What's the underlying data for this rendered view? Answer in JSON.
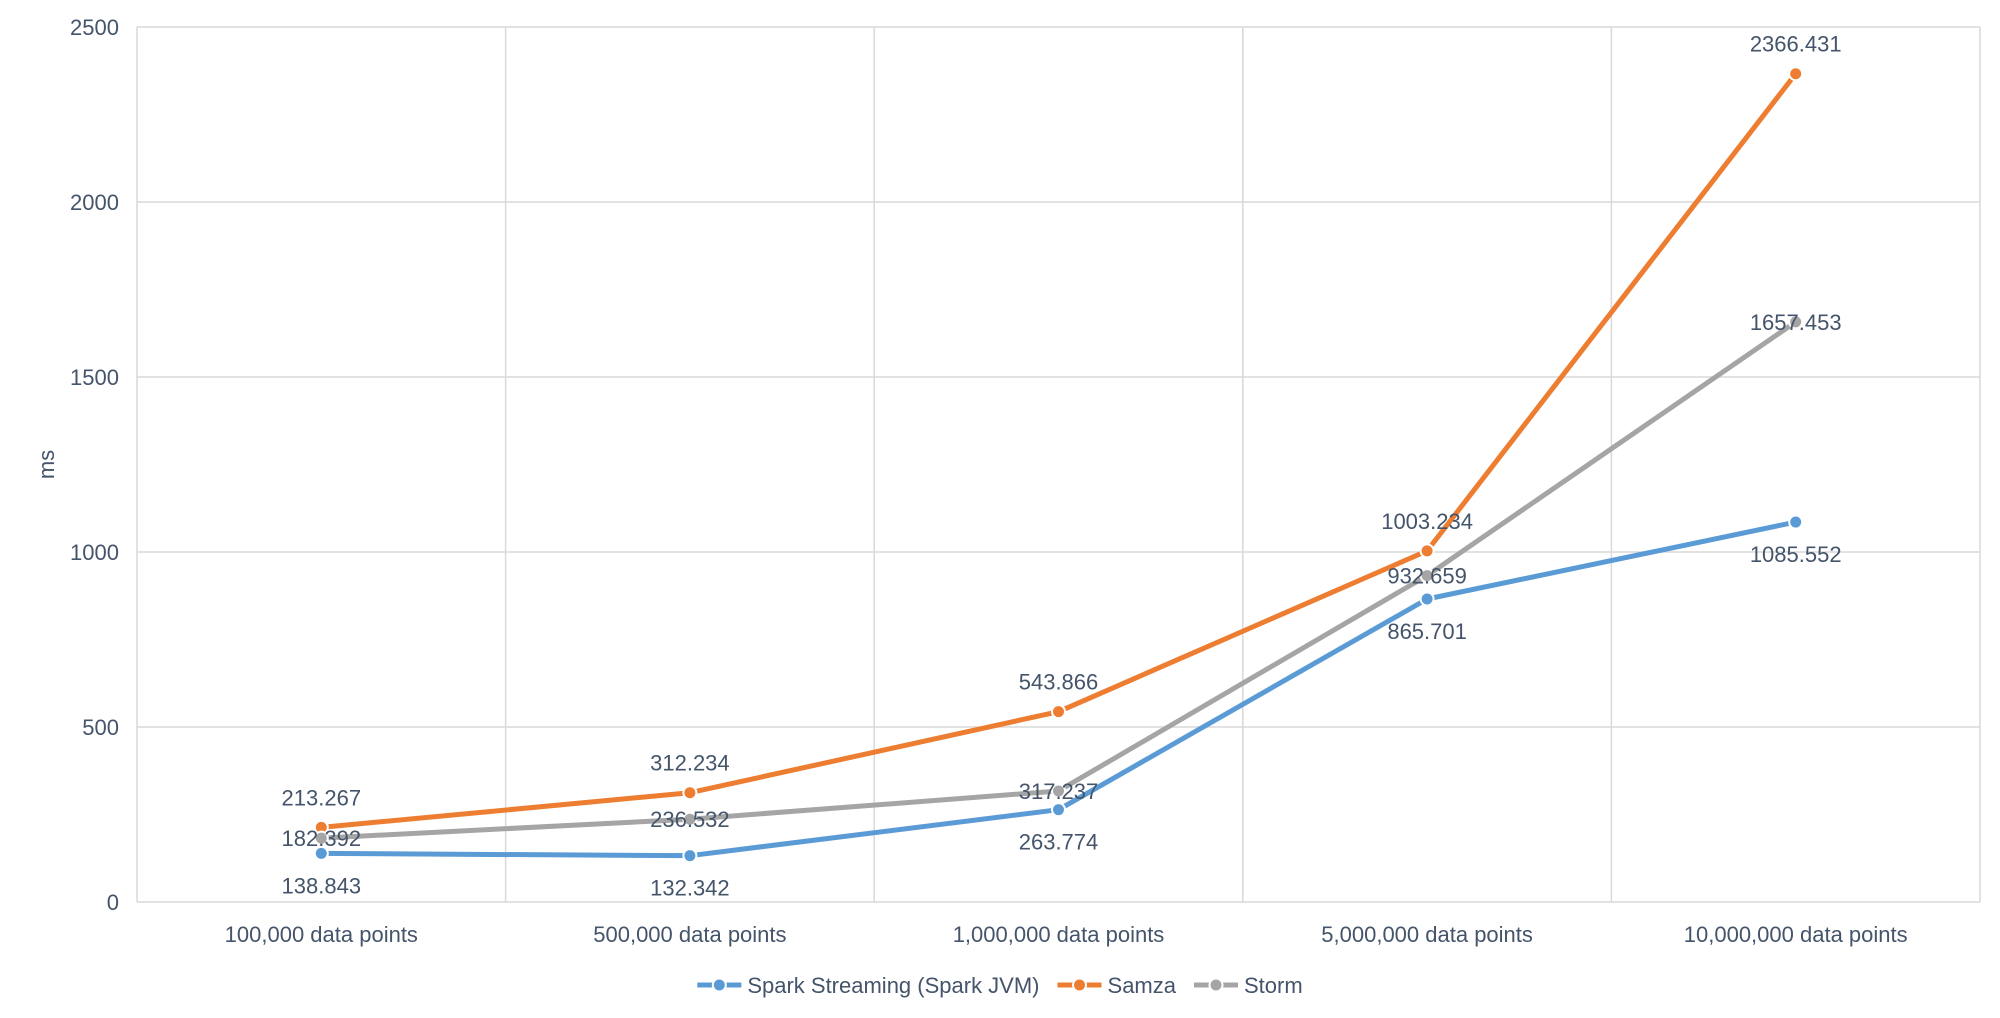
{
  "chart_data": {
    "type": "line",
    "title": "",
    "xlabel": "",
    "ylabel": "ms",
    "ylim": [
      0,
      2500
    ],
    "yticks": [
      0,
      500,
      1000,
      1500,
      2000,
      2500
    ],
    "grid": true,
    "legend_position": "bottom",
    "categories": [
      "100,000 data points",
      "500,000 data points",
      "1,000,000 data points",
      "5,000,000 data points",
      "10,000,000 data points"
    ],
    "series": [
      {
        "name": "Spark Streaming (Spark JVM)",
        "color": "#5b9bd5",
        "values": [
          138.843,
          132.342,
          263.774,
          865.701,
          1085.552
        ],
        "labels": [
          "138.843",
          "132.342",
          "263.774",
          "865.701",
          "1085.552"
        ],
        "label_placement": "below"
      },
      {
        "name": "Samza",
        "color": "#ed7d31",
        "values": [
          213.267,
          312.234,
          543.866,
          1003.234,
          2366.431
        ],
        "labels": [
          "213.267",
          "312.234",
          "543.866",
          "1003.234",
          "2366.431"
        ],
        "label_placement": "above"
      },
      {
        "name": "Storm",
        "color": "#a5a5a5",
        "values": [
          182.392,
          236.532,
          317.237,
          932.659,
          1657.453
        ],
        "labels": [
          "182.392",
          "236.532",
          "317.237",
          "932.659",
          "1657.453"
        ],
        "label_placement": "center"
      }
    ]
  }
}
